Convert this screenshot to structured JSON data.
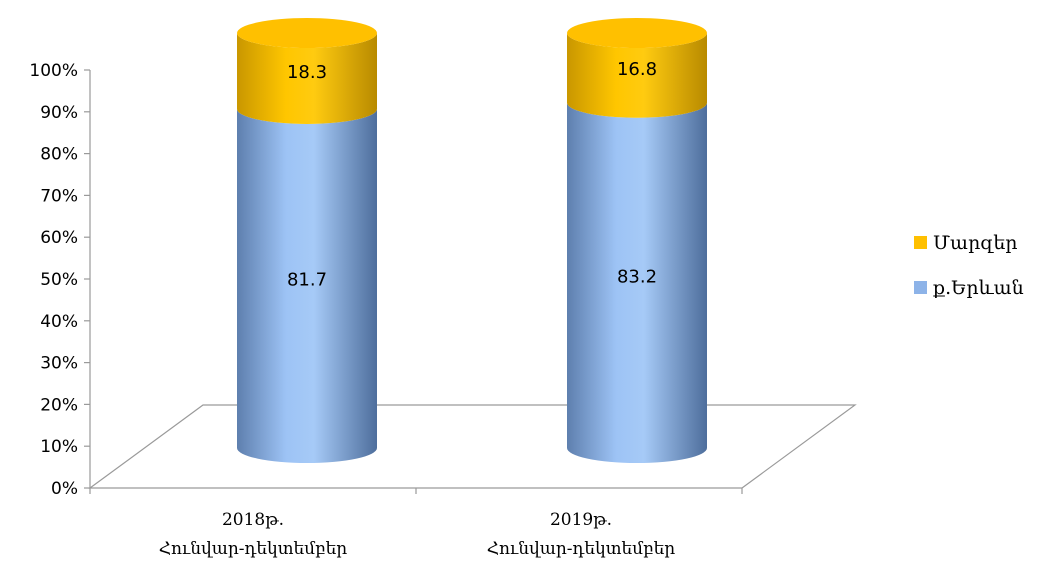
{
  "chart_data": {
    "type": "bar",
    "stacked": true,
    "style": "3d-cylinder",
    "categories": [
      [
        "2018թ.",
        "Հունվար-դեկտեմբեր"
      ],
      [
        "2019թ.",
        "Հունվար-դեկտեմբեր"
      ]
    ],
    "series": [
      {
        "name": "ք.Երևան",
        "values": [
          81.7,
          83.2
        ],
        "color": "#8DB3E8"
      },
      {
        "name": "Մարզեր",
        "values": [
          18.3,
          16.8
        ],
        "color": "#FFC000"
      }
    ],
    "data_labels": [
      [
        "81.7",
        "83.2"
      ],
      [
        "18.3",
        "16.8"
      ]
    ],
    "y_ticks": [
      "0%",
      "10%",
      "20%",
      "30%",
      "40%",
      "50%",
      "60%",
      "70%",
      "80%",
      "90%",
      "100%"
    ],
    "ylim": [
      0,
      100
    ],
    "title": "",
    "xlabel": "",
    "ylabel": "",
    "legend_position": "right",
    "legend_order": [
      "Մարզեր",
      "ք.Երևան"
    ],
    "grid": false
  }
}
